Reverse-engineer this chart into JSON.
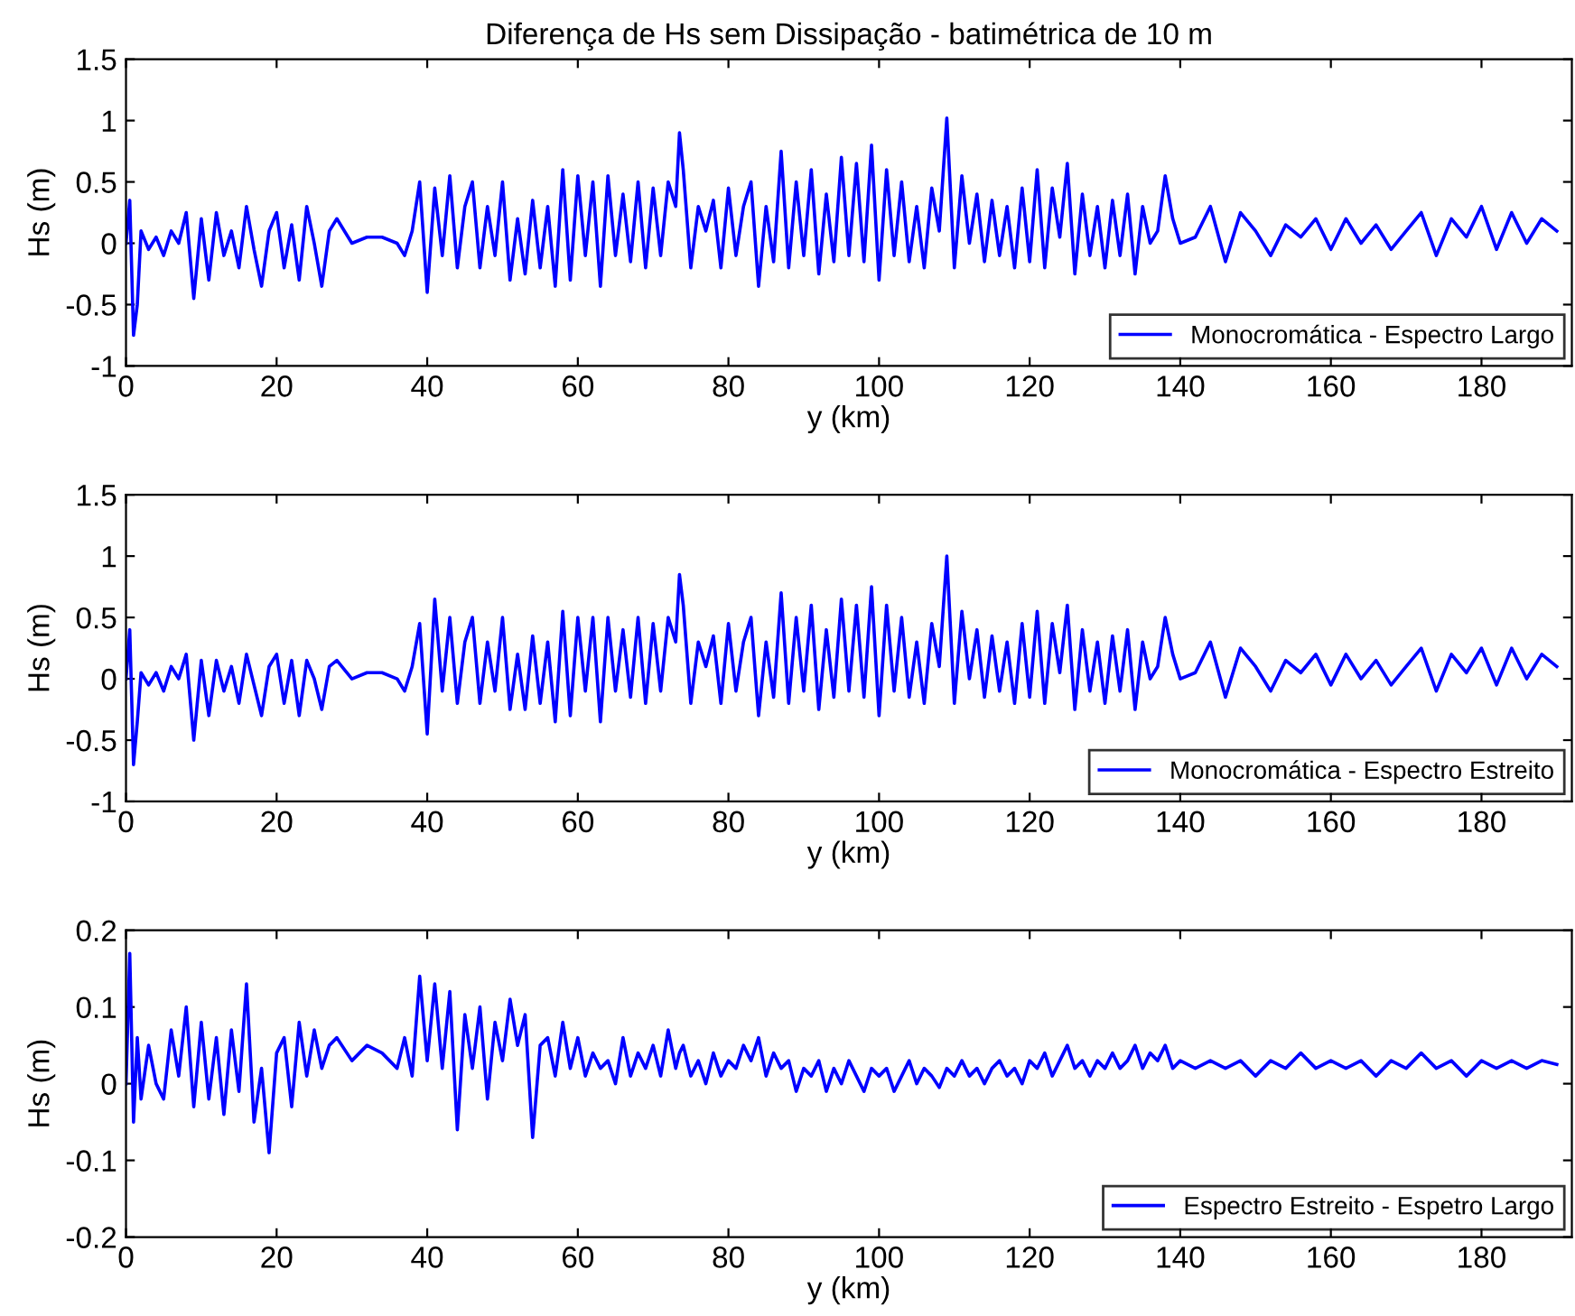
{
  "chart_data": [
    {
      "type": "line",
      "title": "Diferença de Hs sem Dissipação - batimétrica de 10 m",
      "xlabel": "y (km)",
      "ylabel": "Hs (m)",
      "xlim": [
        0,
        192
      ],
      "xticks": [
        0,
        20,
        40,
        60,
        80,
        100,
        120,
        140,
        160,
        180
      ],
      "ylim": [
        -1,
        1.5
      ],
      "yticks": [
        -1,
        -0.5,
        0,
        0.5,
        1,
        1.5
      ],
      "legend": "bottom right",
      "grid": false,
      "x": [
        0,
        0.5,
        1,
        1.5,
        2,
        3,
        4,
        5,
        6,
        7,
        8,
        9,
        10,
        11,
        12,
        13,
        14,
        15,
        16,
        17,
        18,
        19,
        20,
        21,
        22,
        23,
        24,
        25,
        26,
        27,
        28,
        30,
        32,
        34,
        36,
        37,
        38,
        39,
        40,
        41,
        42,
        43,
        44,
        45,
        46,
        47,
        48,
        49,
        50,
        51,
        52,
        53,
        54,
        55,
        56,
        57,
        58,
        59,
        60,
        61,
        62,
        63,
        64,
        65,
        66,
        67,
        68,
        69,
        70,
        71,
        72,
        73,
        73.5,
        74,
        75,
        76,
        77,
        78,
        79,
        80,
        81,
        82,
        83,
        84,
        85,
        86,
        87,
        88,
        89,
        90,
        91,
        92,
        93,
        94,
        95,
        96,
        97,
        98,
        99,
        100,
        101,
        102,
        103,
        104,
        105,
        106,
        107,
        108,
        109,
        110,
        111,
        112,
        113,
        114,
        115,
        116,
        117,
        118,
        119,
        120,
        121,
        122,
        123,
        124,
        125,
        126,
        127,
        128,
        129,
        130,
        131,
        132,
        133,
        134,
        135,
        136,
        137,
        138,
        139,
        140,
        142,
        144,
        146,
        148,
        150,
        152,
        154,
        156,
        158,
        160,
        162,
        164,
        166,
        168,
        170,
        172,
        174,
        176,
        178,
        180,
        182,
        184,
        186,
        188,
        190
      ],
      "series": [
        {
          "name": "Monocromática - Espectro Largo",
          "color": "#0000ff",
          "values": [
            0,
            0.35,
            -0.75,
            -0.5,
            0.1,
            -0.05,
            0.05,
            -0.1,
            0.1,
            0,
            0.25,
            -0.45,
            0.2,
            -0.3,
            0.25,
            -0.1,
            0.1,
            -0.2,
            0.3,
            -0.05,
            -0.35,
            0.1,
            0.25,
            -0.2,
            0.15,
            -0.3,
            0.3,
            0,
            -0.35,
            0.1,
            0.2,
            0,
            0.05,
            0.05,
            0,
            -0.1,
            0.1,
            0.5,
            -0.4,
            0.45,
            -0.1,
            0.55,
            -0.2,
            0.3,
            0.5,
            -0.2,
            0.3,
            -0.1,
            0.5,
            -0.3,
            0.2,
            -0.25,
            0.35,
            -0.2,
            0.3,
            -0.35,
            0.6,
            -0.3,
            0.55,
            -0.1,
            0.5,
            -0.35,
            0.55,
            -0.1,
            0.4,
            -0.15,
            0.5,
            -0.2,
            0.45,
            -0.1,
            0.5,
            0.3,
            0.9,
            0.6,
            -0.2,
            0.3,
            0.1,
            0.35,
            -0.2,
            0.45,
            -0.1,
            0.3,
            0.5,
            -0.35,
            0.3,
            -0.15,
            0.75,
            -0.2,
            0.5,
            -0.1,
            0.6,
            -0.25,
            0.4,
            -0.15,
            0.7,
            -0.1,
            0.65,
            -0.15,
            0.8,
            -0.3,
            0.6,
            -0.1,
            0.5,
            -0.15,
            0.3,
            -0.2,
            0.45,
            0.1,
            1.02,
            -0.2,
            0.55,
            0,
            0.4,
            -0.15,
            0.35,
            -0.1,
            0.3,
            -0.2,
            0.45,
            -0.15,
            0.6,
            -0.2,
            0.45,
            0.05,
            0.65,
            -0.25,
            0.4,
            -0.1,
            0.3,
            -0.2,
            0.35,
            -0.1,
            0.4,
            -0.25,
            0.3,
            0,
            0.1,
            0.55,
            0.2,
            0,
            0.05,
            0.3,
            -0.15,
            0.25,
            0.1,
            -0.1,
            0.15,
            0.05,
            0.2,
            -0.05,
            0.2,
            0,
            0.15,
            -0.05,
            0.1,
            0.25,
            -0.1,
            0.2,
            0.05,
            0.3,
            -0.05,
            0.25,
            0,
            0.2,
            0.1
          ]
        }
      ]
    },
    {
      "type": "line",
      "xlabel": "y (km)",
      "ylabel": "Hs (m)",
      "xlim": [
        0,
        192
      ],
      "xticks": [
        0,
        20,
        40,
        60,
        80,
        100,
        120,
        140,
        160,
        180
      ],
      "ylim": [
        -1,
        1.5
      ],
      "yticks": [
        -1,
        -0.5,
        0,
        0.5,
        1,
        1.5
      ],
      "legend": "bottom right",
      "grid": false,
      "x": [
        0,
        0.5,
        1,
        1.5,
        2,
        3,
        4,
        5,
        6,
        7,
        8,
        9,
        10,
        11,
        12,
        13,
        14,
        15,
        16,
        17,
        18,
        19,
        20,
        21,
        22,
        23,
        24,
        25,
        26,
        27,
        28,
        30,
        32,
        34,
        36,
        37,
        38,
        39,
        40,
        41,
        42,
        43,
        44,
        45,
        46,
        47,
        48,
        49,
        50,
        51,
        52,
        53,
        54,
        55,
        56,
        57,
        58,
        59,
        60,
        61,
        62,
        63,
        64,
        65,
        66,
        67,
        68,
        69,
        70,
        71,
        72,
        73,
        73.5,
        74,
        75,
        76,
        77,
        78,
        79,
        80,
        81,
        82,
        83,
        84,
        85,
        86,
        87,
        88,
        89,
        90,
        91,
        92,
        93,
        94,
        95,
        96,
        97,
        98,
        99,
        100,
        101,
        102,
        103,
        104,
        105,
        106,
        107,
        108,
        109,
        110,
        111,
        112,
        113,
        114,
        115,
        116,
        117,
        118,
        119,
        120,
        121,
        122,
        123,
        124,
        125,
        126,
        127,
        128,
        129,
        130,
        131,
        132,
        133,
        134,
        135,
        136,
        137,
        138,
        139,
        140,
        142,
        144,
        146,
        148,
        150,
        152,
        154,
        156,
        158,
        160,
        162,
        164,
        166,
        168,
        170,
        172,
        174,
        176,
        178,
        180,
        182,
        184,
        186,
        188,
        190
      ],
      "series": [
        {
          "name": "Monocromática - Espectro Estreito",
          "color": "#0000ff",
          "values": [
            0,
            0.4,
            -0.7,
            -0.35,
            0.05,
            -0.05,
            0.05,
            -0.1,
            0.1,
            0,
            0.2,
            -0.5,
            0.15,
            -0.3,
            0.15,
            -0.1,
            0.1,
            -0.2,
            0.2,
            -0.05,
            -0.3,
            0.1,
            0.2,
            -0.2,
            0.15,
            -0.3,
            0.15,
            0,
            -0.25,
            0.1,
            0.15,
            0,
            0.05,
            0.05,
            0,
            -0.1,
            0.1,
            0.45,
            -0.45,
            0.65,
            -0.1,
            0.5,
            -0.2,
            0.3,
            0.5,
            -0.2,
            0.3,
            -0.1,
            0.5,
            -0.25,
            0.2,
            -0.25,
            0.35,
            -0.2,
            0.3,
            -0.35,
            0.55,
            -0.3,
            0.5,
            -0.1,
            0.5,
            -0.35,
            0.5,
            -0.1,
            0.4,
            -0.15,
            0.5,
            -0.2,
            0.45,
            -0.1,
            0.5,
            0.3,
            0.85,
            0.6,
            -0.2,
            0.3,
            0.1,
            0.35,
            -0.2,
            0.45,
            -0.1,
            0.3,
            0.5,
            -0.3,
            0.3,
            -0.15,
            0.7,
            -0.2,
            0.5,
            -0.1,
            0.6,
            -0.25,
            0.4,
            -0.15,
            0.65,
            -0.1,
            0.6,
            -0.15,
            0.75,
            -0.3,
            0.6,
            -0.1,
            0.5,
            -0.15,
            0.3,
            -0.2,
            0.45,
            0.1,
            1.0,
            -0.2,
            0.55,
            0,
            0.4,
            -0.15,
            0.35,
            -0.1,
            0.3,
            -0.2,
            0.45,
            -0.15,
            0.55,
            -0.2,
            0.45,
            0.05,
            0.6,
            -0.25,
            0.4,
            -0.1,
            0.3,
            -0.2,
            0.35,
            -0.1,
            0.4,
            -0.25,
            0.3,
            0,
            0.1,
            0.5,
            0.2,
            0,
            0.05,
            0.3,
            -0.15,
            0.25,
            0.1,
            -0.1,
            0.15,
            0.05,
            0.2,
            -0.05,
            0.2,
            0,
            0.15,
            -0.05,
            0.1,
            0.25,
            -0.1,
            0.2,
            0.05,
            0.25,
            -0.05,
            0.25,
            0,
            0.2,
            0.1
          ]
        }
      ]
    },
    {
      "type": "line",
      "xlabel": "y (km)",
      "ylabel": "Hs (m)",
      "xlim": [
        0,
        192
      ],
      "xticks": [
        0,
        20,
        40,
        60,
        80,
        100,
        120,
        140,
        160,
        180
      ],
      "ylim": [
        -0.2,
        0.2
      ],
      "yticks": [
        -0.2,
        -0.1,
        0,
        0.1,
        0.2
      ],
      "legend": "bottom right",
      "grid": false,
      "x": [
        0,
        0.5,
        1,
        1.5,
        2,
        3,
        4,
        5,
        6,
        7,
        8,
        9,
        10,
        11,
        12,
        13,
        14,
        15,
        16,
        17,
        18,
        19,
        20,
        21,
        22,
        23,
        24,
        25,
        26,
        27,
        28,
        30,
        32,
        34,
        36,
        37,
        38,
        39,
        40,
        41,
        42,
        43,
        44,
        45,
        46,
        47,
        48,
        49,
        50,
        51,
        52,
        53,
        54,
        55,
        56,
        57,
        58,
        59,
        60,
        61,
        62,
        63,
        64,
        65,
        66,
        67,
        68,
        69,
        70,
        71,
        72,
        73,
        73.5,
        74,
        75,
        76,
        77,
        78,
        79,
        80,
        81,
        82,
        83,
        84,
        85,
        86,
        87,
        88,
        89,
        90,
        91,
        92,
        93,
        94,
        95,
        96,
        97,
        98,
        99,
        100,
        101,
        102,
        103,
        104,
        105,
        106,
        107,
        108,
        109,
        110,
        111,
        112,
        113,
        114,
        115,
        116,
        117,
        118,
        119,
        120,
        121,
        122,
        123,
        124,
        125,
        126,
        127,
        128,
        129,
        130,
        131,
        132,
        133,
        134,
        135,
        136,
        137,
        138,
        139,
        140,
        142,
        144,
        146,
        148,
        150,
        152,
        154,
        156,
        158,
        160,
        162,
        164,
        166,
        168,
        170,
        172,
        174,
        176,
        178,
        180,
        182,
        184,
        186,
        188,
        190
      ],
      "series": [
        {
          "name": "Espectro Estreito - Espetro Largo",
          "color": "#0000ff",
          "values": [
            0,
            0.17,
            -0.05,
            0.06,
            -0.02,
            0.05,
            0,
            -0.02,
            0.07,
            0.01,
            0.1,
            -0.03,
            0.08,
            -0.02,
            0.06,
            -0.04,
            0.07,
            -0.01,
            0.13,
            -0.05,
            0.02,
            -0.09,
            0.04,
            0.06,
            -0.03,
            0.08,
            0.01,
            0.07,
            0.02,
            0.05,
            0.06,
            0.03,
            0.05,
            0.04,
            0.02,
            0.06,
            0.01,
            0.14,
            0.03,
            0.13,
            0.02,
            0.12,
            -0.06,
            0.09,
            0.02,
            0.1,
            -0.02,
            0.08,
            0.03,
            0.11,
            0.05,
            0.09,
            -0.07,
            0.05,
            0.06,
            0.01,
            0.08,
            0.02,
            0.06,
            0.01,
            0.04,
            0.02,
            0.03,
            0,
            0.06,
            0.01,
            0.04,
            0.02,
            0.05,
            0.01,
            0.07,
            0.02,
            0.04,
            0.05,
            0.01,
            0.03,
            0,
            0.04,
            0.01,
            0.03,
            0.02,
            0.05,
            0.03,
            0.06,
            0.01,
            0.04,
            0.02,
            0.03,
            -0.01,
            0.02,
            0.01,
            0.03,
            -0.01,
            0.02,
            0,
            0.03,
            0.01,
            -0.01,
            0.02,
            0.01,
            0.02,
            -0.01,
            0.01,
            0.03,
            0,
            0.02,
            0.01,
            -0.005,
            0.02,
            0.01,
            0.03,
            0.01,
            0.02,
            0,
            0.02,
            0.03,
            0.01,
            0.02,
            0,
            0.03,
            0.02,
            0.04,
            0.01,
            0.03,
            0.05,
            0.02,
            0.03,
            0.01,
            0.03,
            0.02,
            0.04,
            0.02,
            0.03,
            0.05,
            0.02,
            0.04,
            0.03,
            0.05,
            0.02,
            0.03,
            0.02,
            0.03,
            0.02,
            0.03,
            0.01,
            0.03,
            0.02,
            0.04,
            0.02,
            0.03,
            0.02,
            0.03,
            0.01,
            0.03,
            0.02,
            0.04,
            0.02,
            0.03,
            0.01,
            0.03,
            0.02,
            0.03,
            0.02,
            0.03,
            0.025
          ]
        }
      ]
    }
  ]
}
